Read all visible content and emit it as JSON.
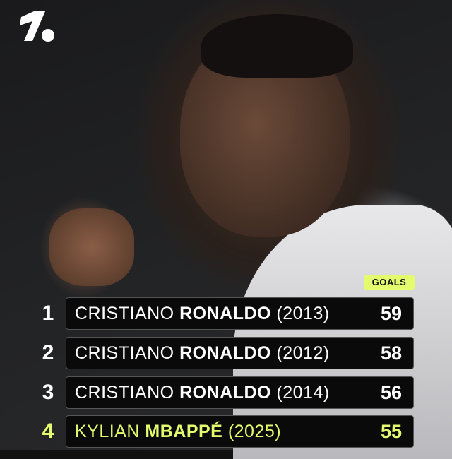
{
  "brand": {
    "logo": "1.",
    "accent": "#e4fb6e"
  },
  "header_badge": "GOALS",
  "rows": [
    {
      "rank": "1",
      "first": "CRISTIANO",
      "last": "RONALDO",
      "year": "(2013)",
      "goals": "59"
    },
    {
      "rank": "2",
      "first": "CRISTIANO",
      "last": "RONALDO",
      "year": "(2012)",
      "goals": "58"
    },
    {
      "rank": "3",
      "first": "CRISTIANO",
      "last": "RONALDO",
      "year": "(2014)",
      "goals": "56"
    },
    {
      "rank": "4",
      "first": "KYLIAN",
      "last": "MBAPPÉ",
      "year": "(2025)",
      "goals": "55",
      "highlight": true
    }
  ]
}
